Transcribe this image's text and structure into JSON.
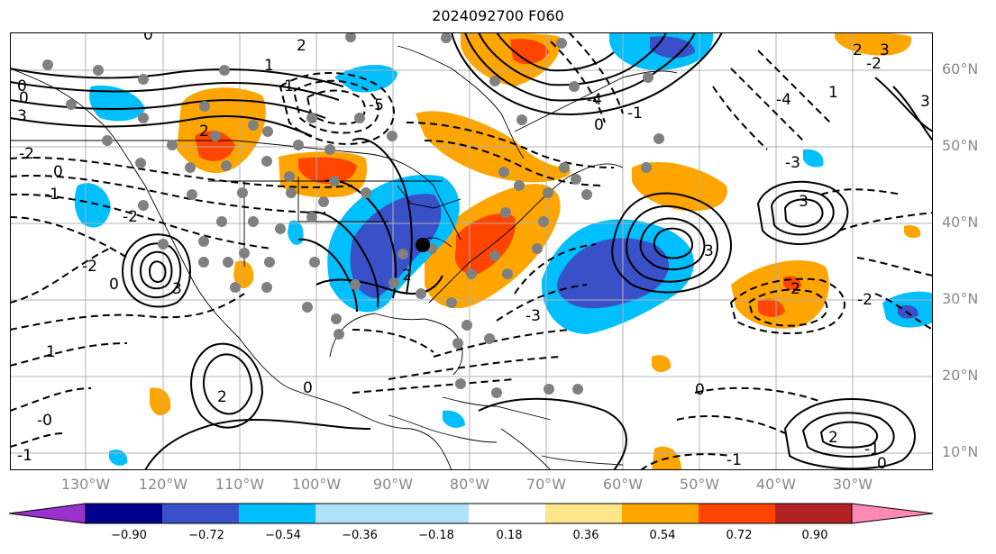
{
  "title": "2024092700 F060",
  "lat_labels": [
    "60°N",
    "50°N",
    "40°N",
    "30°N",
    "20°N",
    "10°N"
  ],
  "lon_labels": [
    "130°W",
    "120°W",
    "110°W",
    "100°W",
    "90°W",
    "80°W",
    "70°W",
    "60°W",
    "50°W",
    "40°W",
    "30°W"
  ],
  "colorbar": {
    "ticks": [
      "−0.90",
      "−0.72",
      "−0.54",
      "−0.36",
      "−0.18",
      "0.18",
      "0.36",
      "0.54",
      "0.72",
      "0.90"
    ],
    "colors": [
      "#9932cc",
      "#00008b",
      "#3a50c8",
      "#00bfff",
      "#aee2fb",
      "#ffffff",
      "#fde68a",
      "#ffa500",
      "#ff4500",
      "#b22222",
      "#ff88b4"
    ]
  },
  "contour_labels": [
    "0",
    "2",
    "1",
    "3",
    "-1",
    "-2",
    "2",
    "0",
    "-2",
    "-5",
    "2",
    "1",
    "-4",
    "3",
    "-3",
    "0",
    "-1",
    "-2",
    "-1",
    "-2",
    "1",
    "-2",
    "-3",
    "-1",
    "2",
    "-3",
    "1",
    "-1",
    "-1",
    "-2",
    "2",
    "0",
    "-3",
    "-1",
    "-1",
    "2",
    "0",
    "1",
    "1",
    "3",
    "2",
    "0",
    "-1",
    "0",
    "1",
    "0",
    "-3",
    "-2",
    "-1"
  ],
  "marker": "black dot near 86°W 37°N",
  "stations": "grey dots over North America and Caribbean"
}
